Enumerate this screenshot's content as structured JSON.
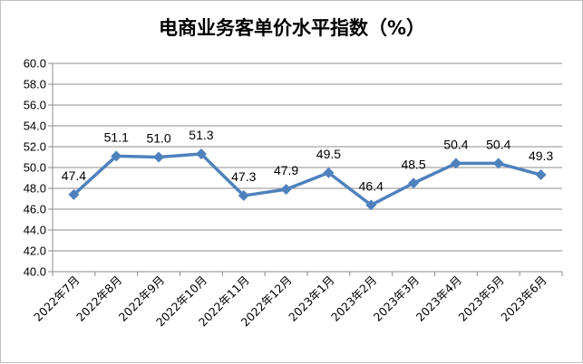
{
  "chart_data": {
    "type": "line",
    "title": "电商业务客单价水平指数（%）",
    "categories": [
      "2022年7月",
      "2022年8月",
      "2022年9月",
      "2022年10月",
      "2022年11月",
      "2022年12月",
      "2023年1月",
      "2023年2月",
      "2023年3月",
      "2023年4月",
      "2023年5月",
      "2023年6月"
    ],
    "series": [
      {
        "values": [
          47.4,
          51.1,
          51.0,
          51.3,
          47.3,
          47.9,
          49.5,
          46.4,
          48.5,
          50.4,
          50.4,
          49.3
        ]
      }
    ],
    "data_labels": [
      "47.4",
      "51.1",
      "51.0",
      "51.3",
      "47.3",
      "47.9",
      "49.5",
      "46.4",
      "48.5",
      "50.4",
      "50.4",
      "49.3"
    ],
    "ylim": [
      40,
      60
    ],
    "yticks": [
      "40.0",
      "42.0",
      "44.0",
      "46.0",
      "48.0",
      "50.0",
      "52.0",
      "54.0",
      "56.0",
      "58.0",
      "60.0"
    ],
    "grid": true,
    "legend": "none",
    "line_color": "#4f81bd"
  }
}
